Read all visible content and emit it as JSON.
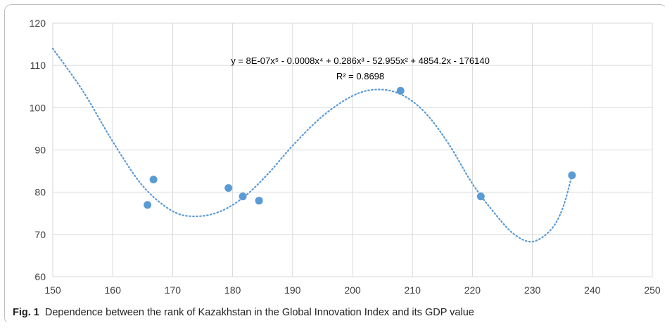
{
  "caption": {
    "label": "Fig. 1",
    "text": "Dependence between the rank of Kazakhstan in the Global Innovation Index and its GDP value"
  },
  "chart_data": {
    "type": "scatter",
    "title": "",
    "xlabel": "",
    "ylabel": "",
    "xlim": [
      150,
      250
    ],
    "ylim": [
      60,
      120
    ],
    "x_ticks": [
      150,
      160,
      170,
      180,
      190,
      200,
      210,
      220,
      230,
      240,
      250
    ],
    "y_ticks": [
      60,
      70,
      80,
      90,
      100,
      110,
      120
    ],
    "grid": true,
    "points": [
      {
        "x": 165.8,
        "y": 77
      },
      {
        "x": 166.8,
        "y": 83
      },
      {
        "x": 179.3,
        "y": 81
      },
      {
        "x": 181.7,
        "y": 79
      },
      {
        "x": 184.4,
        "y": 78
      },
      {
        "x": 208.0,
        "y": 104
      },
      {
        "x": 221.4,
        "y": 79
      },
      {
        "x": 236.6,
        "y": 84
      }
    ],
    "trendline": {
      "type": "polynomial",
      "order": 5,
      "equation_text": "y = 8E-07x⁵ - 0.0008x⁴ + 0.286x³ - 52.955x² + 4854.2x - 176140",
      "r2_text": "R² = 0.8698",
      "curve": [
        {
          "x": 150,
          "y": 114
        },
        {
          "x": 155,
          "y": 104
        },
        {
          "x": 160,
          "y": 92
        },
        {
          "x": 165,
          "y": 81.5
        },
        {
          "x": 170,
          "y": 75.5
        },
        {
          "x": 174,
          "y": 74.3
        },
        {
          "x": 178,
          "y": 75.5
        },
        {
          "x": 182,
          "y": 79
        },
        {
          "x": 186,
          "y": 84.5
        },
        {
          "x": 190,
          "y": 91
        },
        {
          "x": 195,
          "y": 98
        },
        {
          "x": 200,
          "y": 102.8
        },
        {
          "x": 204,
          "y": 104.3
        },
        {
          "x": 208,
          "y": 103.2
        },
        {
          "x": 212,
          "y": 99
        },
        {
          "x": 216,
          "y": 91.5
        },
        {
          "x": 220,
          "y": 82
        },
        {
          "x": 224,
          "y": 74.5
        },
        {
          "x": 227,
          "y": 70
        },
        {
          "x": 230,
          "y": 68.3
        },
        {
          "x": 233,
          "y": 71
        },
        {
          "x": 235,
          "y": 76
        },
        {
          "x": 236.6,
          "y": 84
        }
      ]
    },
    "colors": {
      "marker": "#5b9bd5",
      "trendline": "#5b9bd5",
      "grid": "#d9d9d9"
    }
  }
}
